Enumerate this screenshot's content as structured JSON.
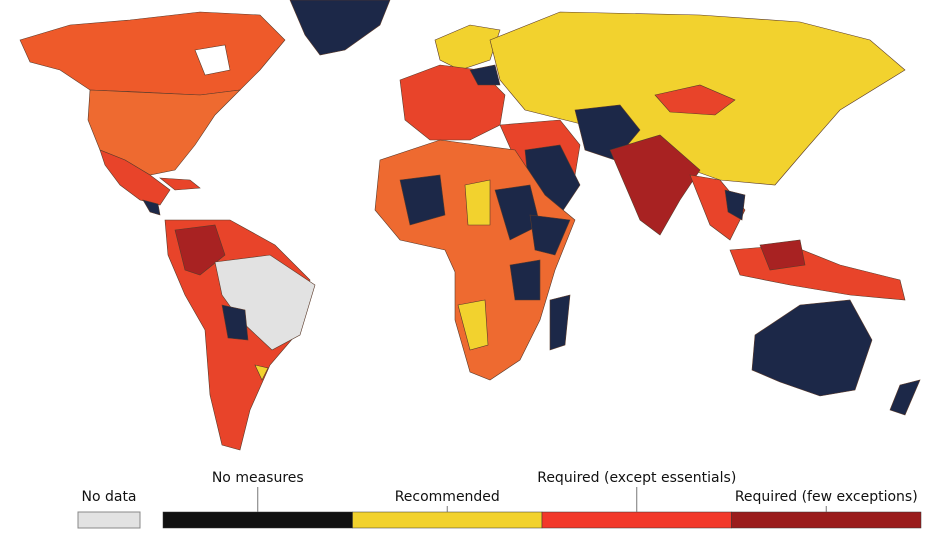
{
  "legend": {
    "no_data": {
      "label": "No data",
      "color": "#e2e2e2"
    },
    "items": [
      {
        "label": "No measures",
        "color": "#111111"
      },
      {
        "label": "Recommended",
        "color": "#f2d22e"
      },
      {
        "label": "Required (except essentials)",
        "color": "#f2382a"
      },
      {
        "label": "Required (few exceptions)",
        "color": "#9a1c1c"
      }
    ]
  }
}
